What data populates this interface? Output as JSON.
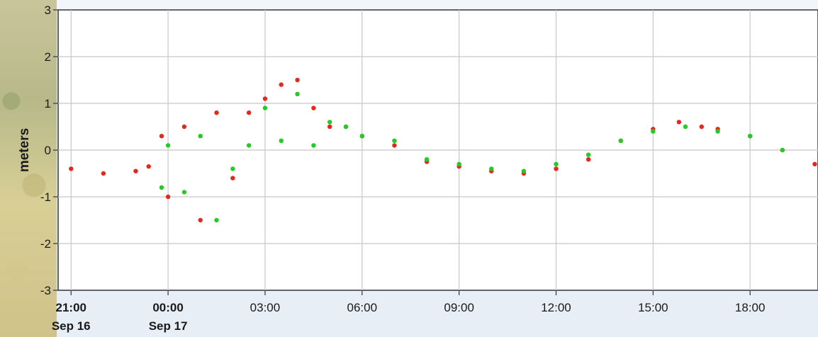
{
  "chart_data": {
    "type": "scatter",
    "title": "",
    "ylabel": "meters",
    "xlabel": "",
    "ylim": [
      -3,
      3
    ],
    "xlim_hours_from_sep16_2100": [
      -0.4,
      23.1
    ],
    "y_ticks": [
      "3",
      "2",
      "1",
      "0",
      "-1",
      "-2",
      "-3"
    ],
    "x_ticks": [
      {
        "line1": "21:00",
        "line2": "Sep 16",
        "bold": true
      },
      {
        "line1": "00:00",
        "line2": "Sep 17",
        "bold": true
      },
      {
        "line1": "03:00",
        "line2": "",
        "bold": false
      },
      {
        "line1": "06:00",
        "line2": "",
        "bold": false
      },
      {
        "line1": "09:00",
        "line2": "",
        "bold": false
      },
      {
        "line1": "12:00",
        "line2": "",
        "bold": false
      },
      {
        "line1": "15:00",
        "line2": "",
        "bold": false
      },
      {
        "line1": "18:00",
        "line2": "",
        "bold": false
      }
    ],
    "grid": true,
    "series": [
      {
        "color": "#e8261e",
        "x": [
          "Sep 16 21:00",
          "Sep 16 22:00",
          "Sep 16 23:00",
          "Sep 16 23:24",
          "Sep 16 23:48",
          "Sep 17 00:00",
          "Sep 17 00:30",
          "Sep 17 01:00",
          "Sep 17 01:30",
          "Sep 17 02:00",
          "Sep 17 02:30",
          "Sep 17 03:00",
          "Sep 17 03:30",
          "Sep 17 04:00",
          "Sep 17 04:30",
          "Sep 17 05:00",
          "Sep 17 05:30",
          "Sep 17 06:00",
          "Sep 17 07:00",
          "Sep 17 08:00",
          "Sep 17 09:00",
          "Sep 17 10:00",
          "Sep 17 11:00",
          "Sep 17 12:00",
          "Sep 17 13:00",
          "Sep 17 14:00",
          "Sep 17 15:00",
          "Sep 17 15:48",
          "Sep 17 16:30",
          "Sep 17 17:00",
          "Sep 17 18:00",
          "Sep 17 19:00",
          "Sep 17 20:00"
        ],
        "y": [
          -0.4,
          -0.5,
          -0.45,
          -0.35,
          0.3,
          -1.0,
          0.5,
          -1.5,
          0.8,
          -0.6,
          0.8,
          1.1,
          1.4,
          1.5,
          0.9,
          0.5,
          0.5,
          0.3,
          0.1,
          -0.25,
          -0.35,
          -0.45,
          -0.5,
          -0.4,
          -0.2,
          0.2,
          0.45,
          0.6,
          0.5,
          0.45,
          0.3,
          0.0,
          -0.3
        ]
      },
      {
        "color": "#22cc22",
        "x": [
          "Sep 16 23:48",
          "Sep 17 00:00",
          "Sep 17 00:30",
          "Sep 17 01:00",
          "Sep 17 01:30",
          "Sep 17 02:00",
          "Sep 17 02:30",
          "Sep 17 03:00",
          "Sep 17 03:30",
          "Sep 17 04:00",
          "Sep 17 04:30",
          "Sep 17 05:00",
          "Sep 17 05:30",
          "Sep 17 06:00",
          "Sep 17 07:00",
          "Sep 17 08:00",
          "Sep 17 09:00",
          "Sep 17 10:00",
          "Sep 17 11:00",
          "Sep 17 12:00",
          "Sep 17 13:00",
          "Sep 17 14:00",
          "Sep 17 15:00",
          "Sep 17 16:00",
          "Sep 17 17:00",
          "Sep 17 18:00",
          "Sep 17 19:00"
        ],
        "y": [
          -0.8,
          0.1,
          -0.9,
          0.3,
          -1.5,
          -0.4,
          0.1,
          0.9,
          0.2,
          1.2,
          0.1,
          0.6,
          0.5,
          0.3,
          0.2,
          -0.2,
          -0.3,
          -0.4,
          -0.45,
          -0.3,
          -0.1,
          0.2,
          0.4,
          0.5,
          0.4,
          0.3,
          0.0
        ]
      }
    ]
  }
}
